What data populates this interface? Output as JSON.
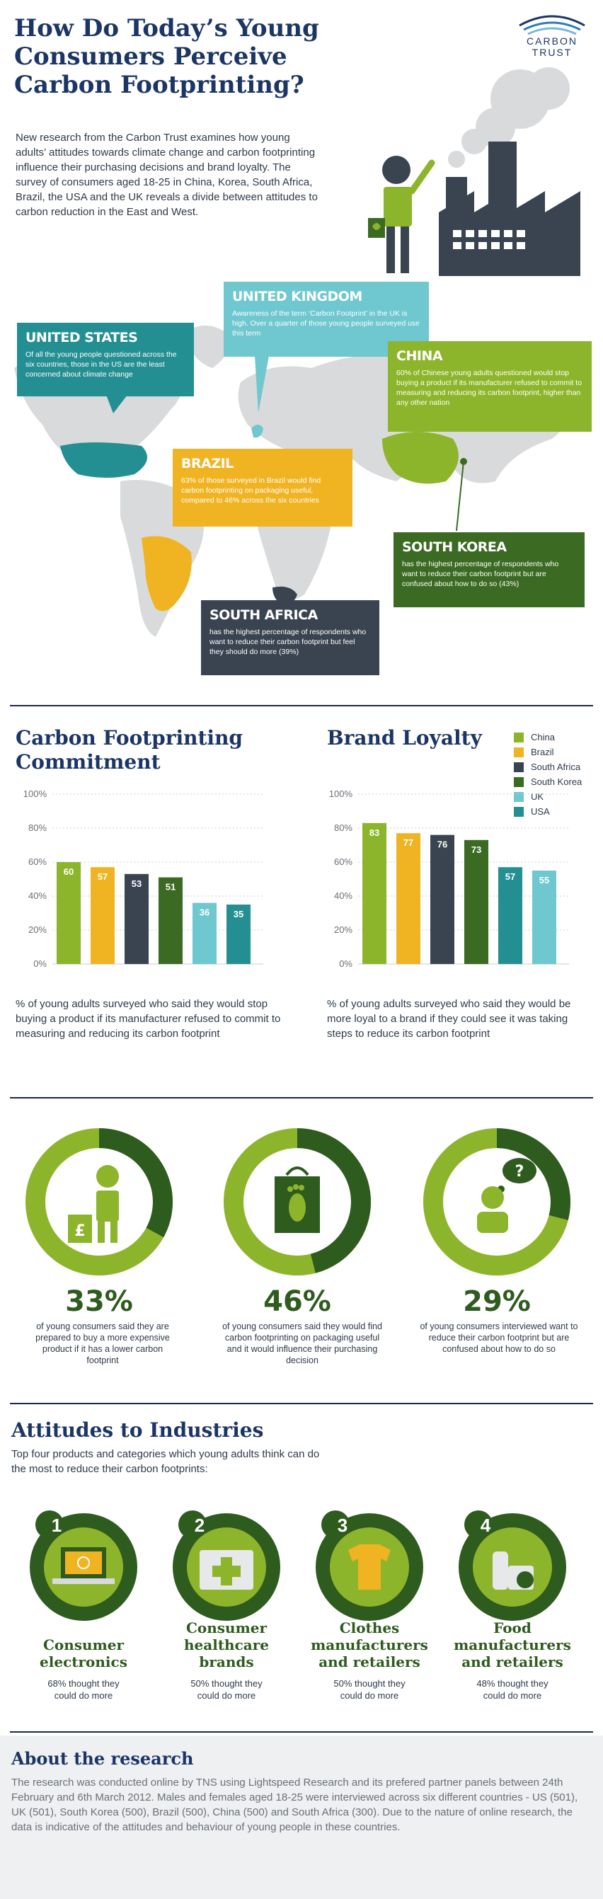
{
  "header": {
    "title_line1": "How Do Today’s Young",
    "title_line2": "Consumers Perceive",
    "title_line3": "Carbon Footprinting?",
    "logo_line1": "CARBON",
    "logo_line2": "TRUST",
    "intro": "New research from the Carbon Trust examines how young adults’ attitudes towards climate change and carbon footprinting influence their purchasing decisions and brand loyalty. The survey of consumers aged 18-25 in China, Korea, South Africa, Brazil, the USA and the UK reveals a divide between attitudes to carbon reduction in the East and West."
  },
  "map": {
    "us": {
      "title": "UNITED STATES",
      "text": "Of all the young people questioned across the six countries, those in the US are the least concerned about climate change"
    },
    "uk": {
      "title": "UNITED KINGDOM",
      "text": "Awareness of the term ‘Carbon Footprint’ in the UK is high. Over a quarter of those young people surveyed use this term"
    },
    "china": {
      "title": "CHINA",
      "text": "60% of Chinese young adults questioned would stop buying a product if its manufacturer refused to commit to measuring and reducing its carbon footprint, higher than any other nation"
    },
    "brazil": {
      "title": "BRAZIL",
      "text": "63% of those surveyed in Brazil would find carbon footprinting on packaging useful, compared to 46% across the six countries"
    },
    "korea": {
      "title": "SOUTH KOREA",
      "text": "has the highest percentage of respondents who want to reduce their carbon footprint but are confused about how to do so (43%)"
    },
    "safrica": {
      "title": "SOUTH AFRICA",
      "text": "has the highest percentage of respondents who want to reduce their carbon footprint but feel they should do more (39%)"
    }
  },
  "colors": {
    "China": "#8db52b",
    "Brazil": "#f0b423",
    "South Africa": "#3a4450",
    "South Korea": "#3b6a22",
    "UK": "#6fc7cf",
    "USA": "#248f93"
  },
  "chart_data": [
    {
      "type": "bar",
      "title": "Carbon Footprinting Commitment",
      "categories": [
        "China",
        "Brazil",
        "South Africa",
        "South Korea",
        "UK",
        "USA"
      ],
      "values": [
        60,
        57,
        53,
        51,
        36,
        35
      ],
      "yticks": [
        "0%",
        "20%",
        "40%",
        "60%",
        "80%",
        "100%"
      ],
      "ylim": [
        0,
        100
      ],
      "caption": "% of young adults surveyed who said they would stop buying a product if its manufacturer refused to commit to measuring and reducing its carbon footprint"
    },
    {
      "type": "bar",
      "title": "Brand Loyalty",
      "categories": [
        "China",
        "Brazil",
        "South Africa",
        "South Korea",
        "USA",
        "UK"
      ],
      "values": [
        83,
        77,
        76,
        73,
        57,
        55
      ],
      "yticks": [
        "0%",
        "20%",
        "40%",
        "60%",
        "80%",
        "100%"
      ],
      "ylim": [
        0,
        100
      ],
      "caption": "% of young adults surveyed who said they would be more loyal to a brand if they could see it was taking steps to reduce its carbon footprint"
    }
  ],
  "legend": [
    "China",
    "Brazil",
    "South Africa",
    "South Korea",
    "UK",
    "USA"
  ],
  "stats": [
    {
      "value": 33,
      "label": "33%",
      "text": "of young consumers said they are prepared to buy a more expensive product if it has a lower carbon footprint"
    },
    {
      "value": 46,
      "label": "46%",
      "text": "of young consumers said they would find carbon footprinting on packaging useful and it would influence their purchasing decision"
    },
    {
      "value": 29,
      "label": "29%",
      "text": "of young consumers interviewed want to reduce their carbon footprint but are confused about how to do so"
    }
  ],
  "industries": {
    "title": "Attitudes to Industries",
    "intro": "Top four products and categories which young adults think can do the most to reduce their carbon footprints:",
    "items": [
      {
        "num": "1",
        "name1": "Consumer",
        "name2": "electronics",
        "name3": "",
        "text1": "68% thought they",
        "text2": "could do more"
      },
      {
        "num": "2",
        "name1": "Consumer",
        "name2": "healthcare",
        "name3": "brands",
        "text1": "50% thought they",
        "text2": "could do more"
      },
      {
        "num": "3",
        "name1": "Clothes",
        "name2": "manufacturers",
        "name3": "and retailers",
        "text1": "50% thought they",
        "text2": "could do more"
      },
      {
        "num": "4",
        "name1": "Food",
        "name2": "manufacturers",
        "name3": "and retailers",
        "text1": "48% thought they",
        "text2": "could do more"
      }
    ]
  },
  "about": {
    "title": "About the research",
    "text": "The research was conducted online by TNS using Lightspeed Research and its prefered partner panels between 24th February and 6th March 2012. Males and females aged 18-25 were interviewed across six different countries - US (501), UK (501), South Korea (500), Brazil (500), China (500) and South Africa (300). Due to the nature of online research, the data is indicative of the attitudes and behaviour of young people in these countries."
  }
}
